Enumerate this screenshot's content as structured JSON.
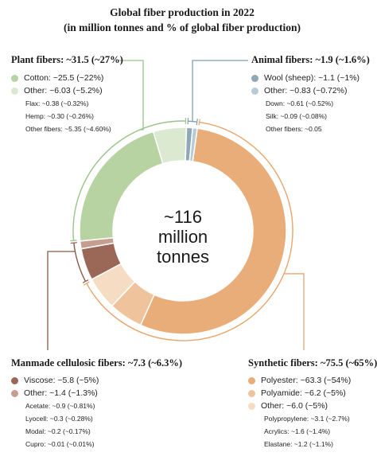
{
  "title_line1": "Global fiber production in 2022",
  "title_line2": "(in million tonnes and % of global fiber production)",
  "center": {
    "line1": "~116",
    "line2": "million",
    "line3": "tonnes"
  },
  "colors": {
    "synthetic": "#e8ad78",
    "polyamide": "#efc49c",
    "synthetic_other": "#f6dcc2",
    "manmade": "#9b6757",
    "manmade_other": "#c79d8f",
    "plant": "#b8d3a2",
    "plant_other": "#dce9d1",
    "animal": "#8fa8b8",
    "animal_other": "#b7cad5",
    "plant_line": "#9bc38a",
    "animal_line": "#7fa0b5",
    "manmade_line": "#8a5a48",
    "synthetic_line": "#e8a46a"
  },
  "groups": {
    "plant": {
      "title": "Plant fibers: ~31.5 (~27%)",
      "items": [
        {
          "label": "Cotton: ~25.5 (~22%)",
          "color": "#b8d3a2"
        },
        {
          "label": "Other: ~6.03 (~5.2%)",
          "color": "#dce9d1"
        }
      ],
      "sub": [
        "Flax: ~0.38 (~0.32%)",
        "Hemp: ~0.30 (~0.26%)",
        "Other fibers: ~5.35 (~4.60%)"
      ]
    },
    "animal": {
      "title": "Animal fibers: ~1.9 (~1.6%)",
      "items": [
        {
          "label": "Wool (sheep): ~1.1 (~1%)",
          "color": "#8fa8b8"
        },
        {
          "label": "Other: ~0.83 (~0.72%)",
          "color": "#b7cad5"
        }
      ],
      "sub": [
        "Down: ~0.61 (~0.52%)",
        "Silk: ~0.09 (~0.08%)",
        "Other fibers: ~0.05"
      ]
    },
    "manmade": {
      "title": "Manmade cellulosic fibers: ~7.3 (~6.3%)",
      "items": [
        {
          "label": "Viscose: ~5.8 (~5%)",
          "color": "#9b6757"
        },
        {
          "label": "Other: ~1.4 (~1.3%)",
          "color": "#c79d8f"
        }
      ],
      "sub": [
        "Acetate: ~0.9 (~0.81%)",
        "Lyocell: ~0.3 (~0.28%)",
        "Modal: ~0.2 (~0.17%)",
        "Cupro: ~0.01 (~0.01%)"
      ]
    },
    "synthetic": {
      "title": "Synthetic fibers: ~75.5 (~65%)",
      "items": [
        {
          "label": "Polyester: ~63.3 (~54%)",
          "color": "#e8ad78"
        },
        {
          "label": "Polyamide: ~6.2 (~5%)",
          "color": "#efc49c"
        },
        {
          "label": "Other: ~6.0 (~5%)",
          "color": "#f6dcc2"
        }
      ],
      "sub": [
        "Polypropylene: ~3.1 (~2.7%)",
        "Acrylics: ~1.6 (~1.4%)",
        "Elastane: ~1.2 (~1.1%)"
      ]
    }
  },
  "chart_data": {
    "type": "pie",
    "variant": "donut",
    "start_category": "Polyester",
    "direction": "clockwise",
    "total": 116,
    "series": [
      {
        "name": "Polyester",
        "value": 63.3,
        "group": "synthetic",
        "color": "#e8ad78"
      },
      {
        "name": "Polyamide",
        "value": 6.2,
        "group": "synthetic",
        "color": "#efc49c"
      },
      {
        "name": "Other",
        "value": 6.0,
        "group": "synthetic",
        "color": "#f6dcc2"
      },
      {
        "name": "Viscose",
        "value": 5.8,
        "group": "manmade",
        "color": "#9b6757"
      },
      {
        "name": "Other",
        "value": 1.4,
        "group": "manmade",
        "color": "#c79d8f"
      },
      {
        "name": "Cotton",
        "value": 25.5,
        "group": "plant",
        "color": "#b8d3a2"
      },
      {
        "name": "Other",
        "value": 6.03,
        "group": "plant",
        "color": "#dce9d1"
      },
      {
        "name": "Wool (sheep)",
        "value": 1.1,
        "group": "animal",
        "color": "#8fa8b8"
      },
      {
        "name": "Other",
        "value": 0.83,
        "group": "animal",
        "color": "#b7cad5"
      }
    ],
    "groups": [
      {
        "name": "Synthetic fibers",
        "value": 75.5
      },
      {
        "name": "Manmade cellulosic fibers",
        "value": 7.3
      },
      {
        "name": "Plant fibers",
        "value": 31.5
      },
      {
        "name": "Animal fibers",
        "value": 1.9
      }
    ]
  }
}
